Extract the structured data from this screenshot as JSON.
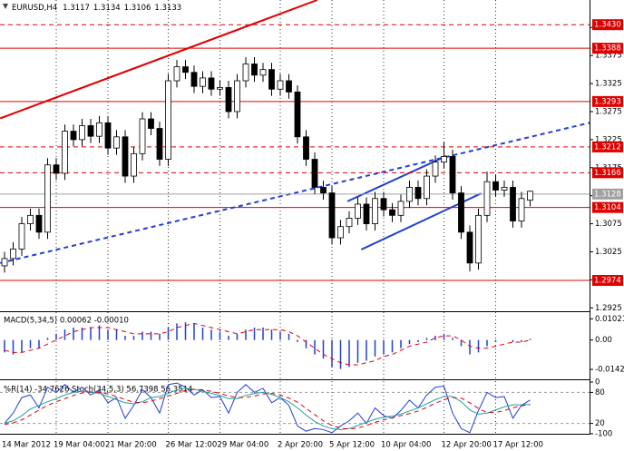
{
  "chart_data": [
    {
      "type": "candlestick",
      "symbol": "EURUSD,H4",
      "categories": [
        "14 Mar 2012",
        null,
        null,
        null,
        null,
        null,
        "19 Mar 04:00",
        null,
        null,
        null,
        null,
        null,
        "21 Mar 20:00",
        null,
        null,
        null,
        null,
        null,
        null,
        "26 Mar 12:00",
        null,
        null,
        null,
        null,
        null,
        "29 Mar 04:00",
        null,
        null,
        null,
        null,
        null,
        null,
        "2 Apr 20:00",
        null,
        null,
        null,
        null,
        null,
        "5 Apr 12:00",
        null,
        null,
        null,
        null,
        null,
        "10 Apr 04:00",
        null,
        null,
        null,
        null,
        null,
        null,
        "12 Apr 20:00",
        null,
        null,
        null,
        null,
        null,
        "17 Apr 12:00",
        null,
        null,
        null,
        null
      ],
      "open": [
        1.3,
        1.3013,
        1.303,
        1.3075,
        1.309,
        1.306,
        1.318,
        1.3165,
        1.324,
        1.3225,
        1.325,
        1.3231,
        1.3255,
        1.321,
        1.323,
        1.316,
        1.32,
        1.3262,
        1.3245,
        1.319,
        1.333,
        1.3355,
        1.3345,
        1.332,
        1.3335,
        1.3315,
        1.3318,
        1.3275,
        1.333,
        1.336,
        1.334,
        1.335,
        1.3315,
        1.333,
        1.331,
        1.323,
        1.319,
        1.314,
        1.313,
        1.305,
        1.307,
        1.3085,
        1.311,
        1.3075,
        1.312,
        1.31,
        1.309,
        1.3115,
        1.314,
        1.312,
        1.316,
        1.3185,
        1.3195,
        1.313,
        1.306,
        1.3005,
        1.309,
        1.315,
        1.3135,
        1.314,
        1.308,
        1.3117
      ],
      "high": [
        1.3025,
        1.3042,
        1.3087,
        1.3102,
        1.3102,
        1.3192,
        1.3192,
        1.3252,
        1.3252,
        1.3262,
        1.3262,
        1.3267,
        1.3267,
        1.3242,
        1.3242,
        1.3212,
        1.3274,
        1.3274,
        1.3257,
        1.3342,
        1.3367,
        1.3367,
        1.3357,
        1.3347,
        1.3347,
        1.333,
        1.333,
        1.3342,
        1.3372,
        1.3372,
        1.3362,
        1.3362,
        1.3342,
        1.3342,
        1.3322,
        1.3242,
        1.3202,
        1.3152,
        1.3142,
        1.3082,
        1.3097,
        1.3122,
        1.3122,
        1.3132,
        1.3132,
        1.3112,
        1.3127,
        1.3152,
        1.3152,
        1.3172,
        1.3197,
        1.322,
        1.3207,
        1.3142,
        1.3072,
        1.3102,
        1.3168,
        1.3162,
        1.3152,
        1.3152,
        1.3132,
        1.3134
      ],
      "low": [
        1.2988,
        1.3001,
        1.3018,
        1.3063,
        1.3048,
        1.3048,
        1.3153,
        1.3153,
        1.3213,
        1.3213,
        1.3219,
        1.3219,
        1.3198,
        1.3198,
        1.3148,
        1.3148,
        1.3188,
        1.3233,
        1.3178,
        1.3178,
        1.3318,
        1.3333,
        1.3308,
        1.3308,
        1.3303,
        1.3303,
        1.3263,
        1.3263,
        1.3318,
        1.3328,
        1.3328,
        1.3303,
        1.3303,
        1.3298,
        1.3218,
        1.3178,
        1.3128,
        1.3118,
        1.3038,
        1.3038,
        1.3058,
        1.3073,
        1.3063,
        1.3063,
        1.3088,
        1.3078,
        1.3078,
        1.3103,
        1.3108,
        1.3108,
        1.3148,
        1.3173,
        1.3118,
        1.3048,
        1.299,
        1.2993,
        1.3078,
        1.3123,
        1.3123,
        1.3068,
        1.3068,
        1.3106
      ],
      "close": [
        1.3013,
        1.303,
        1.3075,
        1.309,
        1.306,
        1.318,
        1.3165,
        1.324,
        1.3225,
        1.325,
        1.3231,
        1.3255,
        1.321,
        1.323,
        1.316,
        1.32,
        1.3262,
        1.3245,
        1.319,
        1.333,
        1.3355,
        1.3345,
        1.332,
        1.3335,
        1.3315,
        1.3318,
        1.3275,
        1.333,
        1.336,
        1.334,
        1.335,
        1.3315,
        1.333,
        1.331,
        1.323,
        1.319,
        1.314,
        1.313,
        1.305,
        1.307,
        1.3085,
        1.311,
        1.3075,
        1.312,
        1.31,
        1.309,
        1.3115,
        1.314,
        1.312,
        1.316,
        1.3185,
        1.3195,
        1.313,
        1.306,
        1.3005,
        1.309,
        1.315,
        1.3135,
        1.314,
        1.308,
        1.312,
        1.3133
      ],
      "ylim": [
        1.2919,
        1.3474
      ],
      "yticks": [
        1.2925,
        1.2975,
        1.3025,
        1.3075,
        1.3125,
        1.3175,
        1.3225,
        1.3275,
        1.3325,
        1.3375,
        1.3425
      ],
      "levels": [
        {
          "value": 1.343,
          "label": "1.3430",
          "style": "dashed",
          "color": "#e00000"
        },
        {
          "value": 1.3388,
          "style": "solid",
          "color": "#e00000"
        },
        {
          "value": 1.3293,
          "style": "solid",
          "color": "#e00000"
        },
        {
          "value": 1.3212,
          "style": "dashed",
          "color": "#e00000"
        },
        {
          "value": 1.3166,
          "style": "dashed",
          "color": "#e00000"
        },
        {
          "value": 1.3128,
          "style": "solid",
          "color": "#a0a0a0"
        },
        {
          "value": 1.3104,
          "style": "solid",
          "color": "#e00000"
        },
        {
          "value": 1.2974,
          "style": "solid",
          "color": "#e00000"
        }
      ],
      "trendlines": [
        {
          "color": "#e00000",
          "style": "solid",
          "x": [
            -0.5,
            36.3
          ],
          "y": [
            1.3263,
            1.3474
          ]
        },
        {
          "color": "#1f3fd6",
          "style": "dashed",
          "x": [
            -0.5,
            67.9
          ],
          "y": [
            1.3005,
            1.3255
          ]
        },
        {
          "color": "#1f3fd6",
          "style": "solid",
          "x": [
            39.8,
            51.3
          ],
          "y": [
            1.3115,
            1.3196
          ]
        },
        {
          "color": "#1f3fd6",
          "style": "solid",
          "x": [
            41.4,
            55.3
          ],
          "y": [
            1.3029,
            1.3129
          ]
        }
      ]
    },
    {
      "type": "histogram",
      "title": "MACD(5,34,5) 0.00062 -0.00010",
      "ylim": [
        -0.019,
        0.013
      ],
      "yticks": [
        0.01021,
        {
          "value": 0,
          "label": "0.00"
        },
        -0.01421
      ],
      "series": [
        {
          "style": "histogram",
          "color": "#1f3fd6",
          "values": [
            -0.006,
            -0.007,
            -0.006,
            -0.004,
            -0.004,
            0.001,
            0.003,
            0.005,
            0.006,
            0.006,
            0.006,
            0.007,
            0.005,
            0.005,
            0.002,
            0.002,
            0.004,
            0.004,
            0.003,
            0.006,
            0.008,
            0.0085,
            0.008,
            0.006,
            0.005,
            0.004,
            0.002,
            0.003,
            0.005,
            0.006,
            0.006,
            0.005,
            0.004,
            0.003,
            -0.001,
            -0.004,
            -0.007,
            -0.009,
            -0.013,
            -0.014,
            -0.013,
            -0.011,
            -0.01,
            -0.008,
            -0.007,
            -0.006,
            -0.004,
            -0.002,
            -0.001,
            0.001,
            0.002,
            0.003,
            0.001,
            -0.003,
            -0.007,
            -0.006,
            -0.003,
            -0.001,
            0,
            -0.001,
            -0.001,
            0.00062
          ]
        },
        {
          "style": "dashed",
          "color": "#e00000",
          "values": [
            -0.005,
            -0.006,
            -0.006,
            -0.005,
            -0.004,
            -0.002,
            0,
            0.002,
            0.004,
            0.005,
            0.006,
            0.006,
            0.006,
            0.005,
            0.004,
            0.003,
            0.003,
            0.003,
            0.003,
            0.004,
            0.006,
            0.007,
            0.008,
            0.007,
            0.006,
            0.005,
            0.004,
            0.003,
            0.004,
            0.005,
            0.005,
            0.005,
            0.005,
            0.004,
            0.002,
            -0.001,
            -0.004,
            -0.007,
            -0.009,
            -0.011,
            -0.012,
            -0.012,
            -0.011,
            -0.01,
            -0.008,
            -0.007,
            -0.005,
            -0.003,
            -0.002,
            -0.001,
            0.001,
            0.002,
            0.002,
            0,
            -0.003,
            -0.004,
            -0.004,
            -0.003,
            -0.002,
            -0.001,
            -0.001,
            -0.0001
          ]
        }
      ]
    },
    {
      "type": "line",
      "title": "%R(14) -34.7626 Stoch(34,5,3) 56.7398 56.3514",
      "ylim": [
        0,
        100
      ],
      "yticks": [
        20,
        80
      ],
      "y2lim": [
        -100,
        0
      ],
      "y2ticks": [
        0,
        -100
      ],
      "series": [
        {
          "style": "solid",
          "axis": "y2",
          "color": "#1f3fd6",
          "values": [
            -80,
            -60,
            -30,
            -25,
            -50,
            -10,
            -20,
            -5,
            -20,
            -10,
            -25,
            -15,
            -40,
            -30,
            -70,
            -45,
            -15,
            -30,
            -60,
            -5,
            -2,
            -10,
            -25,
            -15,
            -30,
            -28,
            -60,
            -20,
            -5,
            -20,
            -12,
            -40,
            -30,
            -45,
            -85,
            -95,
            -90,
            -92,
            -98,
            -85,
            -75,
            -60,
            -80,
            -50,
            -65,
            -70,
            -55,
            -35,
            -50,
            -25,
            -10,
            -8,
            -60,
            -90,
            -98,
            -55,
            -20,
            -30,
            -28,
            -70,
            -45,
            -34.7626
          ]
        },
        {
          "style": "solid",
          "color": "#20a0a0",
          "values": [
            20,
            25,
            35,
            48,
            55,
            62,
            68,
            75,
            80,
            82,
            80,
            78,
            72,
            66,
            60,
            58,
            62,
            70,
            72,
            78,
            85,
            88,
            86,
            82,
            78,
            74,
            68,
            68,
            74,
            78,
            80,
            76,
            70,
            62,
            50,
            36,
            24,
            15,
            10,
            8,
            10,
            16,
            22,
            28,
            32,
            34,
            38,
            44,
            50,
            58,
            66,
            72,
            72,
            62,
            46,
            38,
            40,
            46,
            52,
            56,
            56,
            56.7398
          ]
        },
        {
          "style": "dashed",
          "color": "#e00000",
          "values": [
            18,
            21,
            27,
            36,
            46,
            55,
            62,
            68,
            74,
            79,
            81,
            80,
            77,
            72,
            66,
            61,
            60,
            63,
            68,
            73,
            78,
            84,
            86,
            85,
            82,
            78,
            73,
            70,
            70,
            73,
            77,
            78,
            75,
            69,
            61,
            49,
            37,
            25,
            16,
            11,
            9,
            11,
            16,
            22,
            27,
            31,
            35,
            39,
            44,
            51,
            59,
            66,
            70,
            69,
            60,
            49,
            41,
            41,
            45,
            50,
            54,
            56.3514
          ]
        }
      ]
    }
  ]
}
